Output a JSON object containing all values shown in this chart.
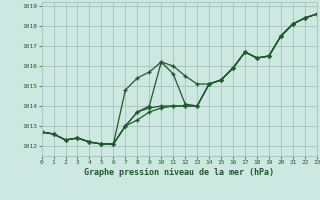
{
  "title": "Graphe pression niveau de la mer (hPa)",
  "background_color": "#cce8e0",
  "grid_color": "#aac8c0",
  "line_color": "#1a5c28",
  "xlim": [
    0,
    23
  ],
  "ylim": [
    1011.5,
    1019.2
  ],
  "xticks": [
    0,
    1,
    2,
    3,
    4,
    5,
    6,
    7,
    8,
    9,
    10,
    11,
    12,
    13,
    14,
    15,
    16,
    17,
    18,
    19,
    20,
    21,
    22,
    23
  ],
  "yticks": [
    1012,
    1013,
    1014,
    1015,
    1016,
    1017,
    1018,
    1019
  ],
  "series": [
    {
      "x": [
        0,
        1,
        2,
        3,
        4,
        5,
        6,
        7,
        8,
        9,
        10,
        11,
        12,
        13,
        14,
        15,
        16,
        17,
        18,
        19,
        20,
        21,
        22,
        23
      ],
      "y": [
        1012.7,
        1012.6,
        1012.3,
        1012.4,
        1012.2,
        1012.1,
        1012.1,
        1013.0,
        1013.7,
        1014.0,
        1016.2,
        1016.0,
        1015.5,
        1015.1,
        1015.1,
        1015.3,
        1015.9,
        1016.7,
        1016.4,
        1016.5,
        1017.5,
        1018.1,
        1018.4,
        1018.6
      ]
    },
    {
      "x": [
        0,
        1,
        2,
        3,
        4,
        5,
        6,
        7,
        8,
        9,
        10,
        11,
        12,
        13,
        14,
        15,
        16,
        17,
        18,
        19,
        20,
        21,
        22,
        23
      ],
      "y": [
        1012.7,
        1012.6,
        1012.3,
        1012.4,
        1012.2,
        1012.1,
        1012.1,
        1014.8,
        1015.4,
        1015.7,
        1016.2,
        1015.6,
        1014.1,
        1014.0,
        1015.1,
        1015.3,
        1015.9,
        1016.7,
        1016.4,
        1016.5,
        1017.5,
        1018.1,
        1018.4,
        1018.6
      ]
    },
    {
      "x": [
        0,
        1,
        2,
        3,
        4,
        5,
        6,
        7,
        8,
        9,
        10,
        11,
        12,
        13,
        14,
        15,
        16,
        17,
        18,
        19,
        20,
        21,
        22,
        23
      ],
      "y": [
        1012.7,
        1012.6,
        1012.3,
        1012.4,
        1012.2,
        1012.1,
        1012.1,
        1013.0,
        1013.7,
        1013.9,
        1014.0,
        1014.0,
        1014.0,
        1014.0,
        1015.1,
        1015.3,
        1015.9,
        1016.7,
        1016.4,
        1016.5,
        1017.5,
        1018.1,
        1018.4,
        1018.6
      ]
    },
    {
      "x": [
        0,
        1,
        2,
        3,
        4,
        5,
        6,
        7,
        8,
        9,
        10,
        11,
        12,
        13,
        14,
        15,
        16,
        17,
        18,
        19,
        20,
        21,
        22,
        23
      ],
      "y": [
        1012.7,
        1012.6,
        1012.3,
        1012.4,
        1012.2,
        1012.1,
        1012.1,
        1013.0,
        1013.3,
        1013.7,
        1013.9,
        1014.0,
        1014.0,
        1014.0,
        1015.1,
        1015.3,
        1015.9,
        1016.7,
        1016.4,
        1016.5,
        1017.5,
        1018.1,
        1018.4,
        1018.6
      ]
    }
  ]
}
